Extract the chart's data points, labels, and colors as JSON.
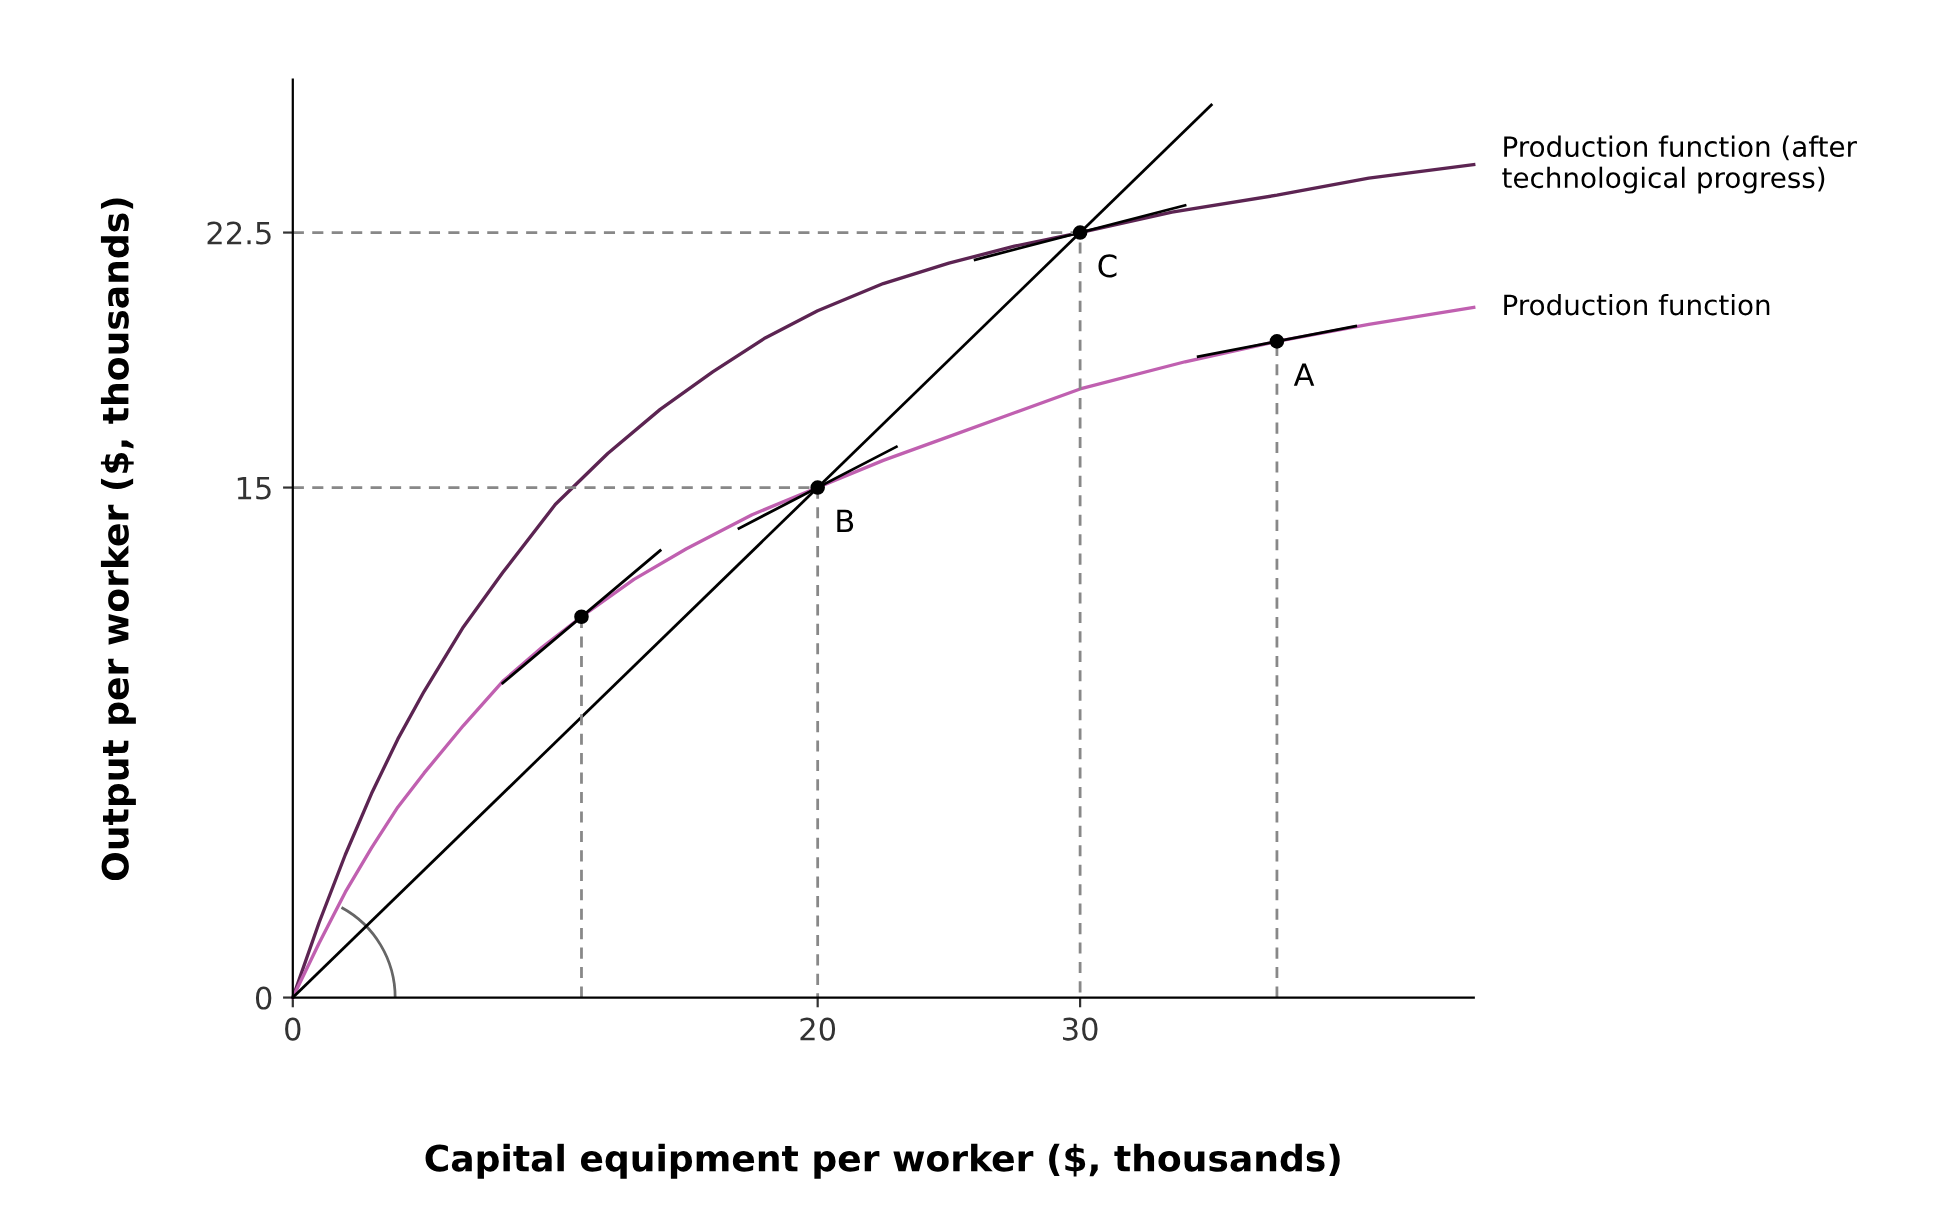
{
  "chart_data": {
    "type": "line",
    "xlabel": "Capital equipment per worker ($, thousands)",
    "ylabel": "Output per worker ($, thousands)",
    "xlim": [
      0,
      45
    ],
    "ylim": [
      0,
      27
    ],
    "xticks": [
      0,
      20,
      30
    ],
    "yticks": [
      0,
      15,
      22.5
    ],
    "grid": false,
    "legend": false,
    "series": [
      {
        "name": "Production function (after technological progress)",
        "color": "#5c2452",
        "x": [
          0,
          1,
          2,
          3,
          4,
          5,
          6.5,
          8,
          10,
          12,
          14,
          16,
          18,
          20,
          22.5,
          25,
          27.5,
          30,
          33.5,
          37.5,
          41,
          45
        ],
        "values": [
          0,
          2.2,
          4.2,
          6,
          7.6,
          9,
          10.9,
          12.5,
          14.5,
          16,
          17.3,
          18.4,
          19.4,
          20.2,
          21,
          21.6,
          22.1,
          22.5,
          23.1,
          23.6,
          24.1,
          24.5
        ]
      },
      {
        "name": "Production function",
        "color": "#c060b0",
        "x": [
          0,
          1,
          2,
          3,
          4,
          5,
          6.5,
          8,
          9.5,
          11,
          13,
          15,
          17.5,
          20,
          22.5,
          25,
          27.5,
          30,
          34,
          37.5,
          41,
          45
        ],
        "values": [
          0,
          1.6,
          3.1,
          4.4,
          5.6,
          6.6,
          8,
          9.3,
          10.3,
          11.2,
          12.3,
          13.2,
          14.2,
          15,
          15.8,
          16.5,
          17.2,
          17.9,
          18.7,
          19.3,
          19.8,
          20.3
        ]
      },
      {
        "color": "#000000",
        "x": [
          0,
          35
        ],
        "values": [
          0,
          26.25
        ]
      },
      {
        "color": "#000000",
        "x": [
          8,
          14
        ],
        "values": [
          9.25,
          13.15
        ]
      },
      {
        "color": "#000000",
        "x": [
          17,
          23
        ],
        "values": [
          13.8,
          16.2
        ]
      },
      {
        "color": "#000000",
        "x": [
          26,
          34
        ],
        "values": [
          21.7,
          23.3
        ]
      },
      {
        "color": "#000000",
        "x": [
          34.5,
          40.5
        ],
        "values": [
          18.85,
          19.75
        ]
      },
      {
        "color": "#888888",
        "line_style": "dashed",
        "x": [
          11,
          11
        ],
        "values": [
          0,
          11.2
        ]
      },
      {
        "color": "#888888",
        "line_style": "dashed",
        "x": [
          0,
          20,
          20
        ],
        "values": [
          15,
          15,
          0
        ]
      },
      {
        "color": "#888888",
        "line_style": "dashed",
        "x": [
          0,
          30,
          30
        ],
        "values": [
          22.5,
          22.5,
          0
        ]
      },
      {
        "color": "#888888",
        "line_style": "dashed",
        "x": [
          37.5,
          37.5
        ],
        "values": [
          0,
          19.3
        ]
      },
      {
        "type": "scatter",
        "color": "#000000",
        "marker": "circle",
        "x": [
          11,
          20,
          30,
          37.5
        ],
        "values": [
          11.2,
          15,
          22.5,
          19.3
        ]
      }
    ],
    "annotations": [
      {
        "text": "A",
        "x": 37.5,
        "y": 19.3
      },
      {
        "text": "B",
        "x": 20,
        "y": 15
      },
      {
        "text": "C",
        "x": 30,
        "y": 22.5
      }
    ]
  }
}
